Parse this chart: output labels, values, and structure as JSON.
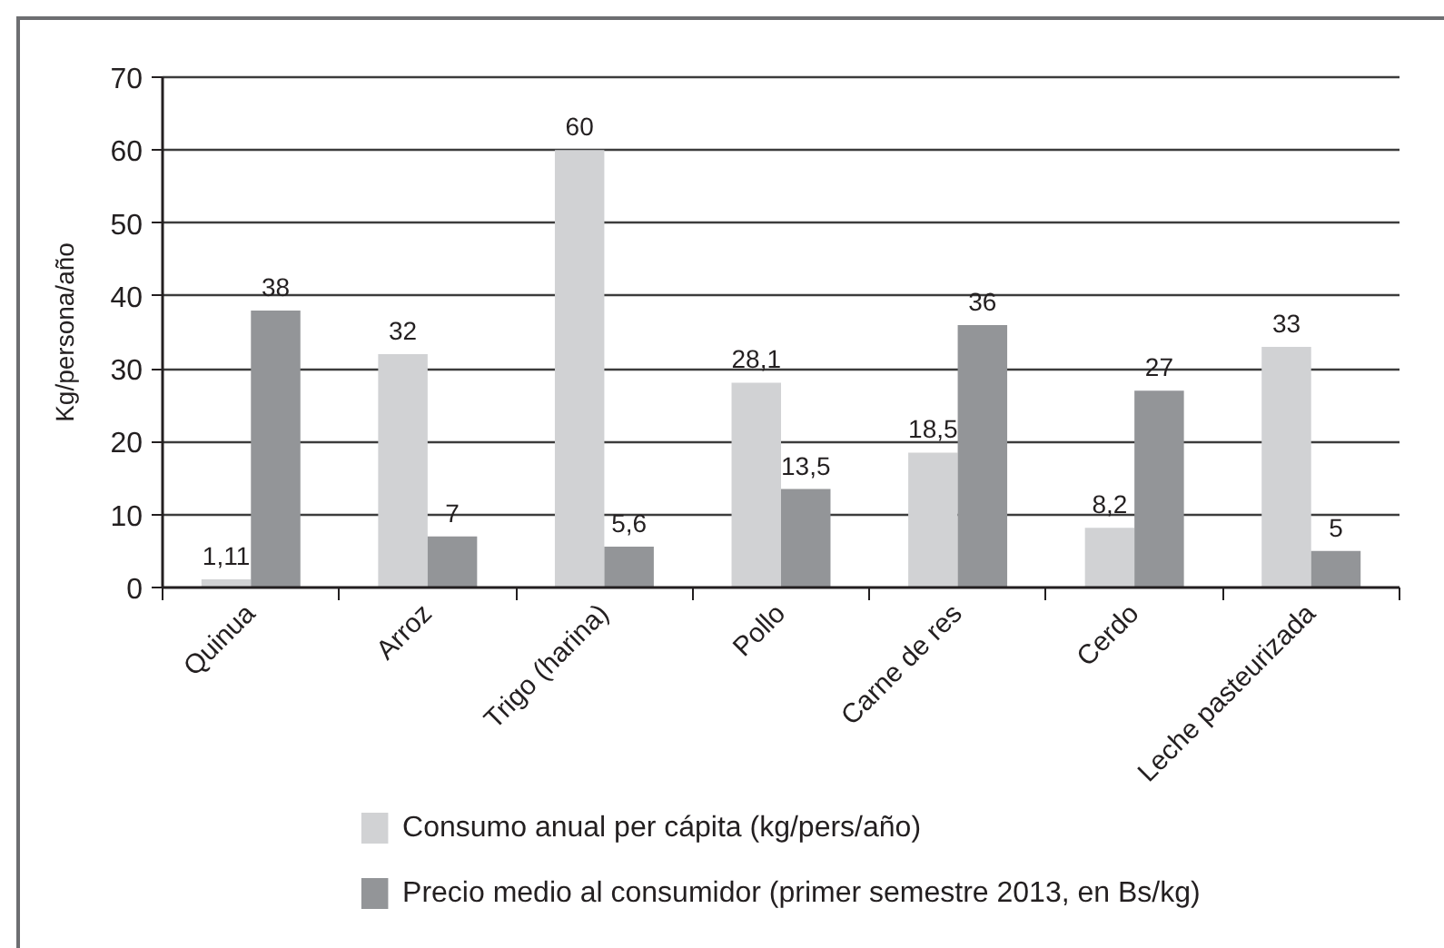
{
  "chart_data": {
    "type": "bar",
    "ylabel": "Kg/persona/año",
    "categories": [
      "Quinua",
      "Arroz",
      "Trigo (harina)",
      "Pollo",
      "Carne de res",
      "Cerdo",
      "Leche pasteurizada"
    ],
    "series": [
      {
        "name": "Consumo anual per cápita (kg/pers/año)",
        "color": "#d1d2d4",
        "values": [
          1.11,
          32,
          60,
          28.1,
          18.5,
          8.2,
          33
        ],
        "value_labels": [
          "1,11",
          "32",
          "60",
          "28,1",
          "18,5",
          "8,2",
          "33"
        ]
      },
      {
        "name": "Precio medio al consumidor (primer semestre 2013, en Bs/kg)",
        "color": "#939598",
        "values": [
          38,
          7,
          5.6,
          13.5,
          36,
          27,
          5
        ],
        "value_labels": [
          "38",
          "7",
          "5,6",
          "13,5",
          "36",
          "27",
          "5"
        ]
      }
    ],
    "ylim": [
      0,
      70
    ],
    "yticks": [
      0,
      10,
      20,
      30,
      40,
      50,
      60,
      70
    ],
    "grid": "y",
    "legend": "bottom"
  }
}
